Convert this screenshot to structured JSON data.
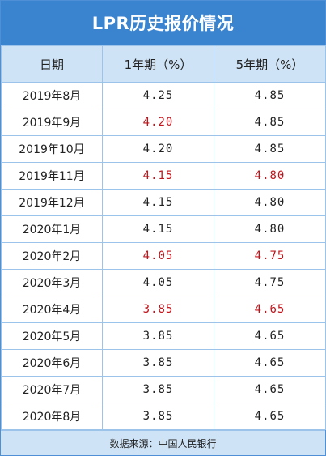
{
  "title": "LPR历史报价情况",
  "headers": [
    "日期",
    "1年期（%）",
    "5年期（%）"
  ],
  "rows": [
    {
      "date": "2019年8月",
      "one_year": "4.25",
      "five_year": "4.85",
      "one_year_changed": false,
      "five_year_changed": false
    },
    {
      "date": "2019年9月",
      "one_year": "4.20",
      "five_year": "4.85",
      "one_year_changed": true,
      "five_year_changed": false
    },
    {
      "date": "2019年10月",
      "one_year": "4.20",
      "five_year": "4.85",
      "one_year_changed": false,
      "five_year_changed": false
    },
    {
      "date": "2019年11月",
      "one_year": "4.15",
      "five_year": "4.80",
      "one_year_changed": true,
      "five_year_changed": true
    },
    {
      "date": "2019年12月",
      "one_year": "4.15",
      "five_year": "4.80",
      "one_year_changed": false,
      "five_year_changed": false
    },
    {
      "date": "2020年1月",
      "one_year": "4.15",
      "five_year": "4.80",
      "one_year_changed": false,
      "five_year_changed": false
    },
    {
      "date": "2020年2月",
      "one_year": "4.05",
      "five_year": "4.75",
      "one_year_changed": true,
      "five_year_changed": true
    },
    {
      "date": "2020年3月",
      "one_year": "4.05",
      "five_year": "4.75",
      "one_year_changed": false,
      "five_year_changed": false
    },
    {
      "date": "2020年4月",
      "one_year": "3.85",
      "five_year": "4.65",
      "one_year_changed": true,
      "five_year_changed": true
    },
    {
      "date": "2020年5月",
      "one_year": "3.85",
      "five_year": "4.65",
      "one_year_changed": false,
      "five_year_changed": false
    },
    {
      "date": "2020年6月",
      "one_year": "3.85",
      "five_year": "4.65",
      "one_year_changed": false,
      "five_year_changed": false
    },
    {
      "date": "2020年7月",
      "one_year": "3.85",
      "five_year": "4.65",
      "one_year_changed": false,
      "five_year_changed": false
    },
    {
      "date": "2020年8月",
      "one_year": "3.85",
      "five_year": "4.65",
      "one_year_changed": false,
      "five_year_changed": false
    }
  ],
  "footer": "数据来源：中国人民银行",
  "colors": {
    "title_bg": "#3a83cf",
    "header_bg": "#cfe3f6",
    "border": "#9cc3ea",
    "changed_value": "#c0151b"
  }
}
